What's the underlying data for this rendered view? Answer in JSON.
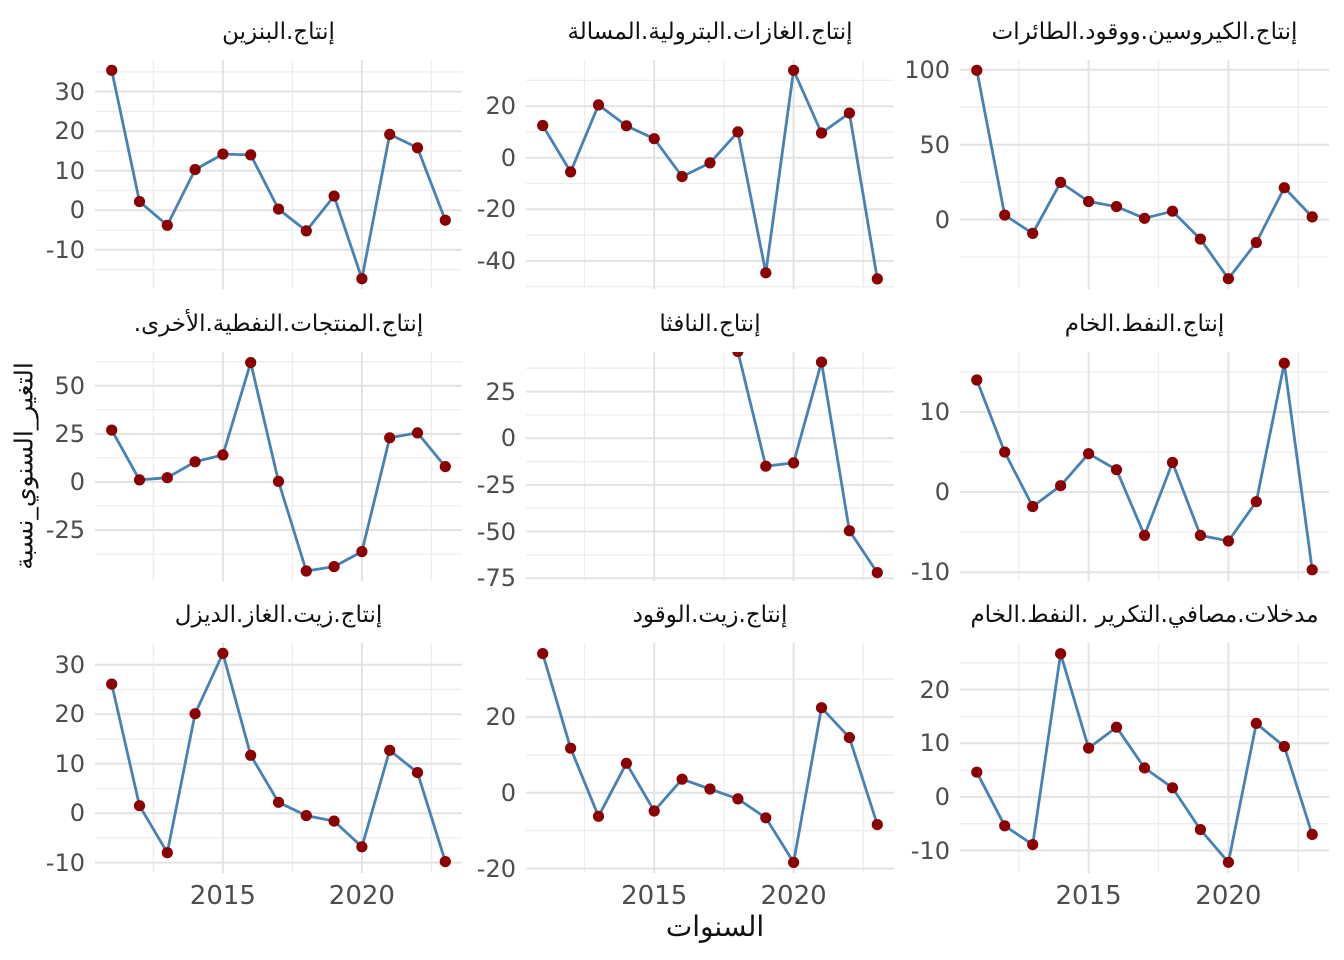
{
  "chart_data": {
    "type": "line",
    "layout": "3x3 faceted small multiples, shared x axis, free y scales, light gray grid on white",
    "x": [
      2011,
      2012,
      2013,
      2014,
      2015,
      2016,
      2017,
      2018,
      2019,
      2020,
      2021,
      2022,
      2023
    ],
    "xlim": [
      2010.4,
      2023.6
    ],
    "xticks": [
      2015,
      2020
    ],
    "xticks_minor": [
      2012.5,
      2017.5,
      2022.5
    ],
    "xlabel": "السنوات",
    "ylabel": "التغير_السنوي_نسبة",
    "colors": {
      "line": "#4682B4",
      "point": "#8B0000",
      "grid_major": "#e3e3e3",
      "grid_minor": "#eeeeee",
      "tick_text": "#4d4d4d",
      "title_text": "#111111"
    },
    "panels": [
      {
        "title": "إنتاج.البنزين",
        "yticks": [
          30,
          20,
          10,
          0,
          -10
        ],
        "ylim": [
          -19.9,
          38.0
        ],
        "values": [
          35.4,
          2.2,
          -3.8,
          10.3,
          14.2,
          14.0,
          0.3,
          -5.2,
          3.6,
          -17.3,
          19.2,
          15.8,
          -2.5
        ]
      },
      {
        "title": "إنتاج.الغازات.البترولية.المسالة",
        "yticks": [
          20,
          0,
          -20,
          -40
        ],
        "ylim": [
          -50.9,
          37.9
        ],
        "values": [
          12.5,
          -5.5,
          20.5,
          12.4,
          7.4,
          -7.3,
          -2.0,
          10.0,
          -44.6,
          33.9,
          9.6,
          17.3,
          -47.0
        ]
      },
      {
        "title": "إنتاج.الكيروسين.ووقود.الطائرات",
        "yticks": [
          100,
          50,
          0
        ],
        "ylim": [
          -46.3,
          106.5
        ],
        "values": [
          99.6,
          3.0,
          -9.2,
          24.8,
          12.1,
          8.7,
          0.9,
          5.6,
          -13.0,
          -39.4,
          -15.3,
          21.3,
          1.8
        ]
      },
      {
        "title": "إنتاج.المنتجات.النفطية.الأخرى.",
        "yticks": [
          50,
          25,
          0,
          -25
        ],
        "ylim": [
          -51.5,
          67.6
        ],
        "values": [
          27.0,
          1.1,
          2.2,
          10.5,
          14.1,
          62.1,
          0.3,
          -46.3,
          -44.0,
          -36.2,
          23.0,
          25.5,
          8.0
        ]
      },
      {
        "title": "إنتاج.النافثا",
        "yticks": [
          25,
          0,
          -25,
          -50,
          -75
        ],
        "ylim": [
          -76.5,
          46.2
        ],
        "x": [
          2018,
          2019,
          2020,
          2021,
          2022,
          2023
        ],
        "values": [
          46.4,
          -15.0,
          -13.2,
          40.8,
          -49.6,
          -72.0
        ]
      },
      {
        "title": "إنتاج.النفط.الخام",
        "yticks": [
          10,
          0,
          -10
        ],
        "ylim": [
          -11.1,
          17.5
        ],
        "values": [
          14.0,
          5.0,
          -1.8,
          0.8,
          4.8,
          2.8,
          -5.4,
          3.7,
          -5.4,
          -6.1,
          -1.2,
          16.1,
          -9.7
        ]
      },
      {
        "title": "إنتاج.زيت.الغاز.الديزل",
        "yticks": [
          30,
          20,
          10,
          0,
          -10
        ],
        "ylim": [
          -12.1,
          34.4
        ],
        "values": [
          26.1,
          1.5,
          -8.0,
          20.1,
          32.3,
          11.7,
          2.2,
          -0.5,
          -1.6,
          -6.8,
          12.7,
          8.2,
          -9.8
        ]
      },
      {
        "title": "إنتاج.زيت.الوقود",
        "yticks": [
          20,
          0,
          -20
        ],
        "ylim": [
          -21.2,
          39.6
        ],
        "values": [
          36.8,
          11.8,
          -6.2,
          7.8,
          -4.8,
          3.6,
          1.0,
          -1.6,
          -6.6,
          -18.4,
          22.5,
          14.6,
          -8.4
        ]
      },
      {
        "title": "مدخلات.مصافي.التكرير .النفط.الخام",
        "yticks": [
          20,
          10,
          0,
          -10
        ],
        "ylim": [
          -14.2,
          28.7
        ],
        "values": [
          4.6,
          -5.4,
          -8.9,
          26.7,
          9.1,
          13.0,
          5.4,
          1.7,
          -6.1,
          -12.2,
          13.7,
          9.4,
          -7.0
        ]
      }
    ]
  }
}
